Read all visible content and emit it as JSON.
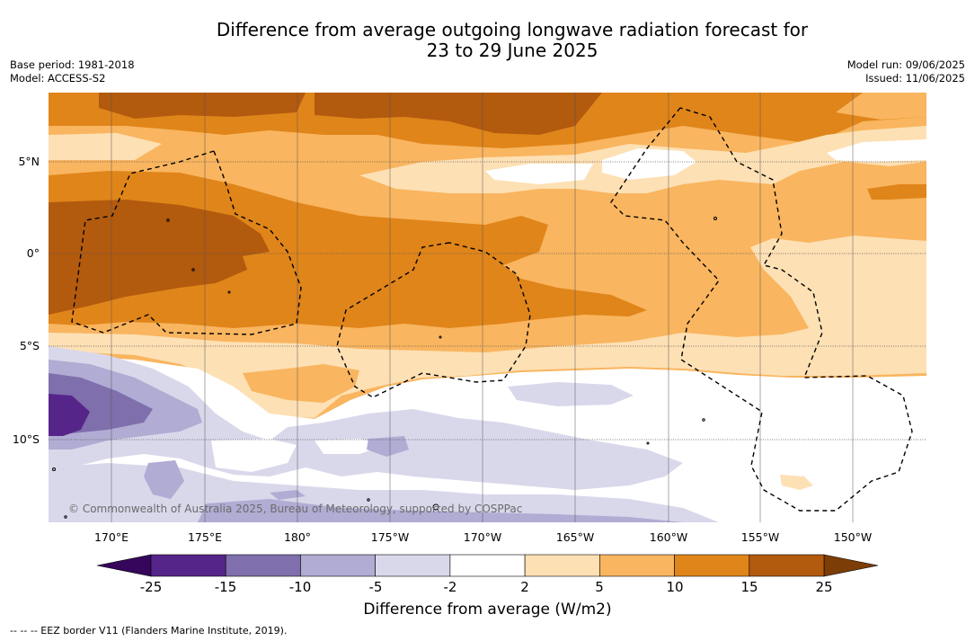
{
  "title": {
    "line1": "Difference from average outgoing longwave radiation forecast for",
    "line2": "23 to 29 June 2025"
  },
  "meta": {
    "base_period": "Base period: 1981-2018",
    "model": "Model: ACCESS-S2",
    "model_run": "Model run: 09/06/2025",
    "issued": "Issued: 11/06/2025"
  },
  "map": {
    "lat_labels": [
      "5°N",
      "0°",
      "5°S",
      "10°S"
    ],
    "lon_labels": [
      "170°E",
      "175°E",
      "180°",
      "175°W",
      "170°W",
      "165°W",
      "160°W",
      "155°W",
      "150°W"
    ],
    "copyright": "© Commonwealth of Australia 2025, Bureau of Meteorology, supported by COSPPac"
  },
  "colorbar": {
    "title": "Difference from average (W/m2)",
    "ticks": [
      "-25",
      "-15",
      "-10",
      "-5",
      "-2",
      "2",
      "5",
      "10",
      "15",
      "25"
    ],
    "colors": [
      "#56258a",
      "#7f6fac",
      "#b1acd3",
      "#d9d8eb",
      "#ffffff",
      "#fde0b4",
      "#f9b55f",
      "#e0851a",
      "#b25a0e"
    ],
    "under_color": "#36065c",
    "over_color": "#7d3d06"
  },
  "legend_note": "--  --  -- EEZ border V11 (Flanders Marine Institute, 2019)."
}
